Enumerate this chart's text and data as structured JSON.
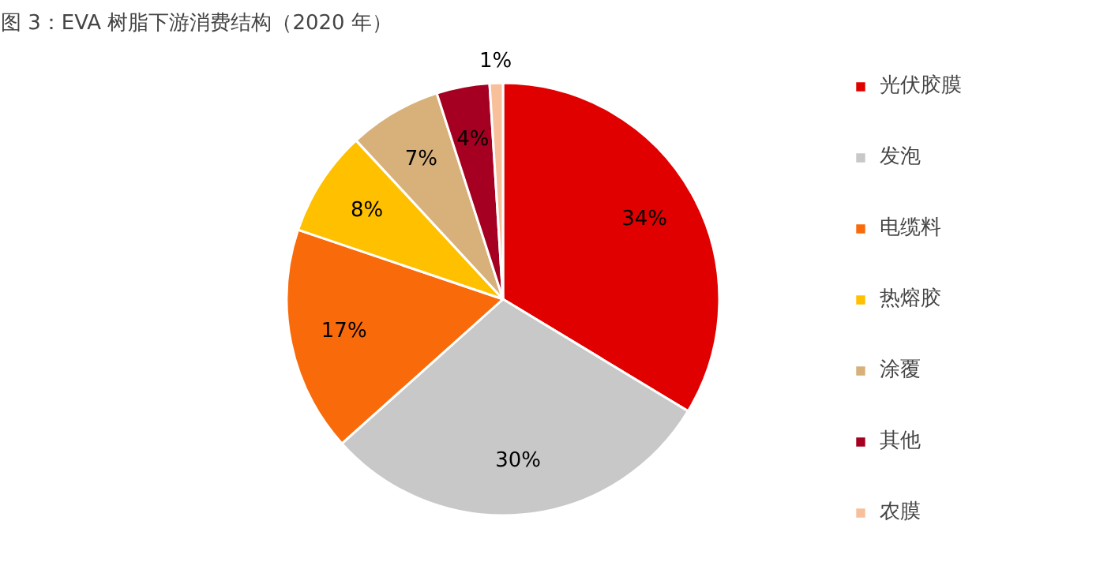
{
  "chart_data": {
    "type": "pie",
    "title": "图 3：EVA 树脂下游消费结构（2020 年）",
    "categories": [
      "光伏胶膜",
      "发泡",
      "电缆料",
      "热熔胶",
      "涂覆",
      "其他",
      "农膜"
    ],
    "values": [
      34,
      30,
      17,
      8,
      7,
      4,
      1
    ],
    "colors": [
      "#e00000",
      "#c8c8c8",
      "#f96a0a",
      "#ffc000",
      "#d8b07a",
      "#a50021",
      "#f8c09a"
    ],
    "value_labels": [
      "34%",
      "30%",
      "17%",
      "8%",
      "7%",
      "4%",
      "1%"
    ],
    "legend": "right"
  }
}
